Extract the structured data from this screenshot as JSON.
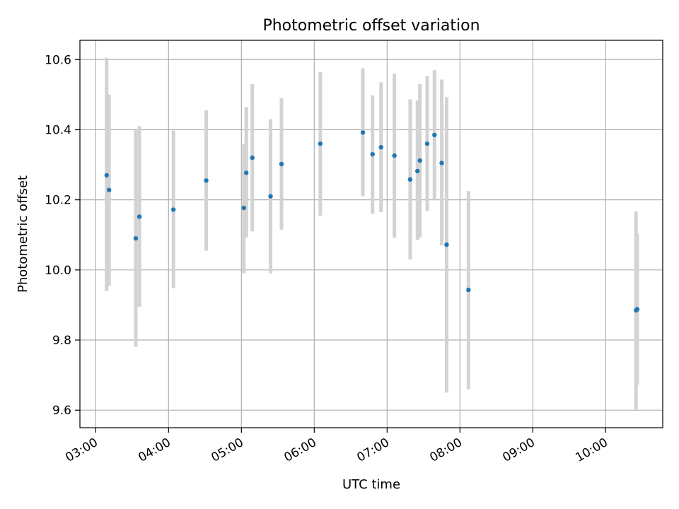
{
  "chart_data": {
    "type": "scatter",
    "title": "Photometric offset variation",
    "xlabel": "UTC time",
    "ylabel": "Photometric offset",
    "x_unit": "UTC time",
    "xlim": [
      "02:47",
      "10:47"
    ],
    "ylim": [
      9.55,
      10.655
    ],
    "grid": true,
    "x_ticks": [
      "03:00",
      "04:00",
      "05:00",
      "06:00",
      "07:00",
      "08:00",
      "09:00",
      "10:00"
    ],
    "y_ticks": [
      9.6,
      9.8,
      10.0,
      10.2,
      10.4,
      10.6
    ],
    "y_tick_labels": [
      "9.6",
      "9.8",
      "10.0",
      "10.2",
      "10.4",
      "10.6"
    ],
    "point_color": "#1f77b4",
    "errorbar_color": "#d3d3d3",
    "points": [
      {
        "t": "03:09",
        "y": 10.27,
        "ylo": 9.94,
        "yhi": 10.605
      },
      {
        "t": "03:11",
        "y": 10.228,
        "ylo": 9.955,
        "yhi": 10.5
      },
      {
        "t": "03:33",
        "y": 10.09,
        "ylo": 9.78,
        "yhi": 10.4
      },
      {
        "t": "03:36",
        "y": 10.152,
        "ylo": 9.895,
        "yhi": 10.41
      },
      {
        "t": "04:04",
        "y": 10.172,
        "ylo": 9.948,
        "yhi": 10.398
      },
      {
        "t": "04:31",
        "y": 10.255,
        "ylo": 10.055,
        "yhi": 10.455
      },
      {
        "t": "05:02",
        "y": 10.177,
        "ylo": 9.99,
        "yhi": 10.36
      },
      {
        "t": "05:04",
        "y": 10.277,
        "ylo": 10.093,
        "yhi": 10.465
      },
      {
        "t": "05:09",
        "y": 10.32,
        "ylo": 10.11,
        "yhi": 10.53
      },
      {
        "t": "05:24",
        "y": 10.21,
        "ylo": 9.99,
        "yhi": 10.43
      },
      {
        "t": "05:33",
        "y": 10.302,
        "ylo": 10.115,
        "yhi": 10.49
      },
      {
        "t": "06:05",
        "y": 10.36,
        "ylo": 10.155,
        "yhi": 10.565
      },
      {
        "t": "06:40",
        "y": 10.392,
        "ylo": 10.21,
        "yhi": 10.575
      },
      {
        "t": "06:48",
        "y": 10.33,
        "ylo": 10.16,
        "yhi": 10.498
      },
      {
        "t": "06:55",
        "y": 10.35,
        "ylo": 10.165,
        "yhi": 10.535
      },
      {
        "t": "07:06",
        "y": 10.326,
        "ylo": 10.092,
        "yhi": 10.56
      },
      {
        "t": "07:19",
        "y": 10.258,
        "ylo": 10.03,
        "yhi": 10.487
      },
      {
        "t": "07:25",
        "y": 10.282,
        "ylo": 10.085,
        "yhi": 10.483
      },
      {
        "t": "07:27",
        "y": 10.312,
        "ylo": 10.093,
        "yhi": 10.53
      },
      {
        "t": "07:33",
        "y": 10.36,
        "ylo": 10.168,
        "yhi": 10.553
      },
      {
        "t": "07:39",
        "y": 10.385,
        "ylo": 10.2,
        "yhi": 10.57
      },
      {
        "t": "07:45",
        "y": 10.305,
        "ylo": 10.07,
        "yhi": 10.543
      },
      {
        "t": "07:49",
        "y": 10.072,
        "ylo": 9.65,
        "yhi": 10.493
      },
      {
        "t": "08:07",
        "y": 9.943,
        "ylo": 9.66,
        "yhi": 10.225
      },
      {
        "t": "10:25",
        "y": 9.885,
        "ylo": 9.602,
        "yhi": 10.167
      },
      {
        "t": "10:26",
        "y": 9.888,
        "ylo": 9.673,
        "yhi": 10.103
      }
    ]
  }
}
